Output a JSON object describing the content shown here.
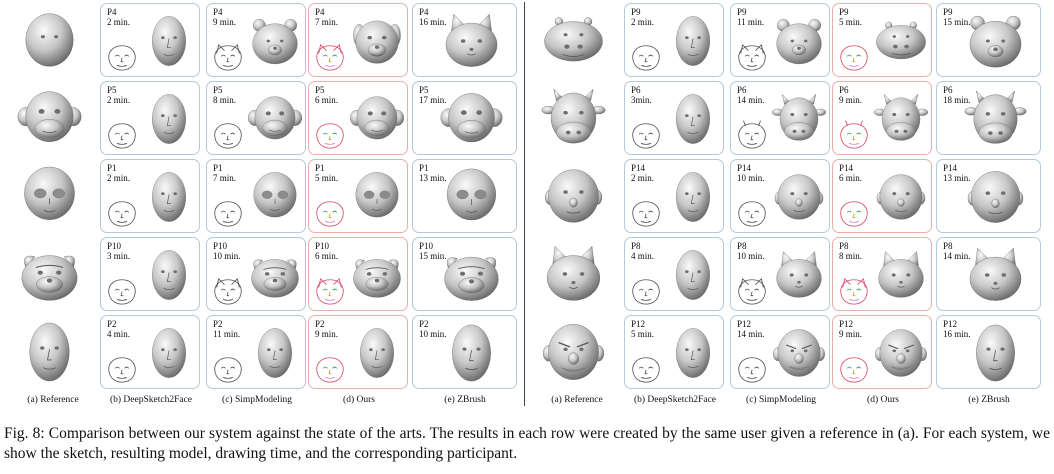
{
  "column_labels": [
    "(a) Reference",
    "(b) DeepSketch2Face",
    "(c) SimpModeling",
    "(d) Ours",
    "(e) ZBrush",
    "(a) Reference",
    "(b) DeepSketch2Face",
    "(c) SimpModeling",
    "(d) Ours",
    "(e) ZBrush"
  ],
  "panels": [
    {
      "rows": [
        {
          "reference": "bulldog",
          "cells": [
            {
              "participant": "P4",
              "time": "2 min.",
              "model": "human"
            },
            {
              "participant": "P4",
              "time": "9 min.",
              "model": "bear"
            },
            {
              "participant": "P4",
              "time": "7 min.",
              "model": "dog"
            },
            {
              "participant": "P4",
              "time": "16 min.",
              "model": "cat"
            }
          ]
        },
        {
          "reference": "monkey",
          "cells": [
            {
              "participant": "P5",
              "time": "2 min.",
              "model": "human"
            },
            {
              "participant": "P5",
              "time": "8 min.",
              "model": "monkey"
            },
            {
              "participant": "P5",
              "time": "6 min.",
              "model": "monkey"
            },
            {
              "participant": "P5",
              "time": "17 min.",
              "model": "monkey"
            }
          ]
        },
        {
          "reference": "alien",
          "cells": [
            {
              "participant": "P1",
              "time": "2 min.",
              "model": "human"
            },
            {
              "participant": "P1",
              "time": "7 min.",
              "model": "alien"
            },
            {
              "participant": "P1",
              "time": "5 min.",
              "model": "alien"
            },
            {
              "participant": "P1",
              "time": "13 min.",
              "model": "alien"
            }
          ]
        },
        {
          "reference": "pug",
          "cells": [
            {
              "participant": "P10",
              "time": "3 min.",
              "model": "human"
            },
            {
              "participant": "P10",
              "time": "10 min.",
              "model": "pug"
            },
            {
              "participant": "P10",
              "time": "6 min.",
              "model": "pug"
            },
            {
              "participant": "P10",
              "time": "15 min.",
              "model": "pug"
            }
          ]
        },
        {
          "reference": "human",
          "cells": [
            {
              "participant": "P2",
              "time": "4 min.",
              "model": "human"
            },
            {
              "participant": "P2",
              "time": "11 min.",
              "model": "human"
            },
            {
              "participant": "P2",
              "time": "9 min.",
              "model": "human"
            },
            {
              "participant": "P2",
              "time": "10 min.",
              "model": "human"
            }
          ]
        }
      ]
    },
    {
      "rows": [
        {
          "reference": "hippo",
          "cells": [
            {
              "participant": "P9",
              "time": "2 min.",
              "model": "human"
            },
            {
              "participant": "P9",
              "time": "11 min.",
              "model": "bear"
            },
            {
              "participant": "P9",
              "time": "5 min.",
              "model": "hippo"
            },
            {
              "participant": "P9",
              "time": "15 min.",
              "model": "bear"
            }
          ]
        },
        {
          "reference": "cow",
          "cells": [
            {
              "participant": "P6",
              "time": "3min.",
              "model": "human"
            },
            {
              "participant": "P6",
              "time": "14 min.",
              "model": "cow"
            },
            {
              "participant": "P6",
              "time": "9 min.",
              "model": "cow"
            },
            {
              "participant": "P6",
              "time": "18 min.",
              "model": "cow"
            }
          ]
        },
        {
          "reference": "round",
          "cells": [
            {
              "participant": "P14",
              "time": "2 min.",
              "model": "human"
            },
            {
              "participant": "P14",
              "time": "10 min.",
              "model": "round"
            },
            {
              "participant": "P14",
              "time": "6 min.",
              "model": "round"
            },
            {
              "participant": "P14",
              "time": "13 min.",
              "model": "round"
            }
          ]
        },
        {
          "reference": "cat",
          "cells": [
            {
              "participant": "P8",
              "time": "4 min.",
              "model": "human"
            },
            {
              "participant": "P8",
              "time": "10 min.",
              "model": "cat"
            },
            {
              "participant": "P8",
              "time": "8 min.",
              "model": "cat"
            },
            {
              "participant": "P8",
              "time": "14 min.",
              "model": "cat"
            }
          ]
        },
        {
          "reference": "ogre",
          "cells": [
            {
              "participant": "P12",
              "time": "5 min.",
              "model": "human"
            },
            {
              "participant": "P12",
              "time": "14 min.",
              "model": "ogre"
            },
            {
              "participant": "P12",
              "time": "9 min.",
              "model": "ogre"
            },
            {
              "participant": "P12",
              "time": "16 min.",
              "model": "human"
            }
          ]
        }
      ]
    }
  ],
  "caption": "Fig. 8: Comparison between our system against the state of the arts. The results in each row were created by the same user given a reference in (a). For each system, we show the sketch, resulting model, drawing time, and the corresponding participant."
}
